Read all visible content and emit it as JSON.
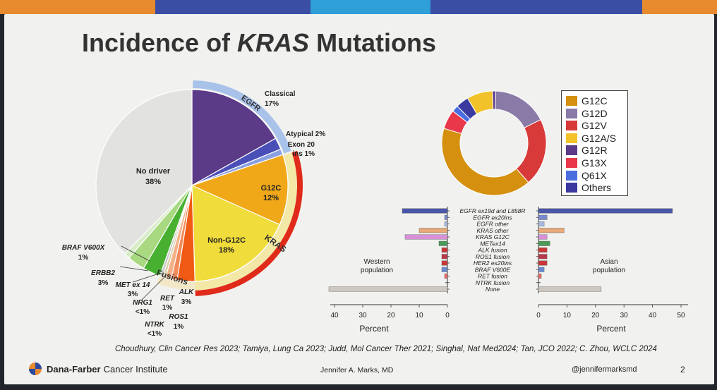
{
  "slide": {
    "title_plain": "Incidence of ",
    "title_italic": "KRAS",
    "title_tail": " Mutations",
    "citation": "Choudhury, Clin Cancer Res 2023; Tamiya, Lung Ca 2023; Judd, Mol Cancer Ther 2021; Singhal, Nat Med2024; Tan, JCO 2022; C. Zhou, WCLC 2024",
    "footer": {
      "org_bold": "Dana-Farber",
      "org_rest": "Cancer Institute",
      "author": "Jennifer A. Marks, MD",
      "handle": "@jennifermarksmd",
      "page": "2"
    },
    "top_bar_colors": [
      "#e88a2e",
      "#3a4fa3",
      "#2f9fd8",
      "#3a4fa3",
      "#e88a2e"
    ]
  },
  "chart_data": [
    {
      "type": "pie",
      "slices": [
        {
          "label": "Classical",
          "value": 17,
          "value_label": "17%",
          "color": "#5b3a87"
        },
        {
          "label": "Atypical",
          "value": 2,
          "value_label": "2%",
          "color": "#4a4fb8"
        },
        {
          "label": "Exon 20 ins",
          "value": 1,
          "value_label": "1%",
          "color": "#8aa0e0"
        },
        {
          "label": "G12C",
          "value": 12,
          "value_label": "12%",
          "color": "#f0a818"
        },
        {
          "label": "Non-G12C",
          "value": 18,
          "value_label": "18%",
          "color": "#f0dc3a"
        },
        {
          "label": "ALK",
          "value": 3,
          "value_label": "3%",
          "color": "#f05a14"
        },
        {
          "label": "ROS1",
          "value": 1,
          "value_label": "1%",
          "color": "#f28a5a"
        },
        {
          "label": "RET",
          "value": 1,
          "value_label": "1%",
          "color": "#f4b088"
        },
        {
          "label": "NTRK",
          "value": 0.5,
          "value_label": "<1%",
          "color": "#d9cfa8"
        },
        {
          "label": "NRG1",
          "value": 0.5,
          "value_label": "<1%",
          "color": "#c8c8c8"
        },
        {
          "label": "MET ex 14",
          "value": 3,
          "value_label": "3%",
          "color": "#48b030"
        },
        {
          "label": "ERBB2",
          "value": 3,
          "value_label": "3%",
          "color": "#a8d880"
        },
        {
          "label": "BRAF V600X",
          "value": 1,
          "value_label": "1%",
          "color": "#d8ecc8"
        },
        {
          "label": "No driver",
          "value": 38,
          "value_label": "38%",
          "color": "#e2e2e0"
        }
      ],
      "arc_labels": {
        "egfr": "EGFR",
        "kras": "KRAS",
        "fusions": "Fusions"
      },
      "arc_colors": {
        "egfr": "#a9c2ea",
        "kras": "#e02a1a",
        "kras_inner": "#f4e8a6",
        "fusions": "#f2e8c8"
      }
    },
    {
      "type": "pie",
      "subtype": "donut",
      "slices": [
        {
          "label": "G12C",
          "value": 41,
          "color": "#d4900e"
        },
        {
          "label": "G12D",
          "value": 17,
          "color": "#8a7aa8"
        },
        {
          "label": "G12V",
          "value": 21,
          "color": "#d83a3a"
        },
        {
          "label": "G12A/S",
          "value": 8,
          "color": "#f2c22a"
        },
        {
          "label": "G12R",
          "value": 1,
          "color": "#5b3a87"
        },
        {
          "label": "G13X",
          "value": 6,
          "color": "#e8384a"
        },
        {
          "label": "Q61X",
          "value": 2,
          "color": "#4a6ee0"
        },
        {
          "label": "Others",
          "value": 4,
          "color": "#3a3aa0"
        }
      ]
    },
    {
      "type": "bar",
      "orientation": "horizontal",
      "categories": [
        "EGFR ex19d and L858R",
        "EGFR ex20ins",
        "EGFR other",
        "KRAS other",
        "KRAS G12C",
        "METex14",
        "ALK fusion",
        "ROS1 fusion",
        "HER2 ex20ins",
        "BRAF V600E",
        "RET fusion",
        "NTRK fusion",
        "None"
      ],
      "series": [
        {
          "name": "Western population",
          "values": [
            16,
            1,
            1,
            10,
            15,
            3,
            2,
            2,
            2,
            2,
            1,
            0,
            42
          ],
          "colors": [
            "#4a56a8",
            "#7a8ad0",
            "#a8b8e0",
            "#e8a878",
            "#d890d8",
            "#4a9a58",
            "#c83838",
            "#b83a48",
            "#c83838",
            "#6a8ad0",
            "#e86868",
            "#cccccc",
            "#cfc8c0"
          ]
        },
        {
          "name": "Asian population",
          "values": [
            47,
            3,
            2,
            9,
            3,
            4,
            3,
            3,
            3,
            2,
            1,
            0,
            22
          ],
          "colors": [
            "#4a56a8",
            "#7a8ad0",
            "#a8b8e0",
            "#e8a878",
            "#d890d8",
            "#4a9a58",
            "#c83838",
            "#b83a48",
            "#c83838",
            "#6a8ad0",
            "#e86868",
            "#cccccc",
            "#cfc8c0"
          ]
        }
      ],
      "left_axis": {
        "ticks": [
          40,
          30,
          20,
          10,
          0
        ],
        "label": "Percent",
        "lim": [
          0,
          42
        ]
      },
      "right_axis": {
        "ticks": [
          0,
          10,
          20,
          30,
          40,
          50
        ],
        "label": "Percent",
        "lim": [
          0,
          50
        ]
      },
      "left_panel_label": [
        "Western",
        "population"
      ],
      "right_panel_label": [
        "Asian",
        "population"
      ]
    }
  ]
}
